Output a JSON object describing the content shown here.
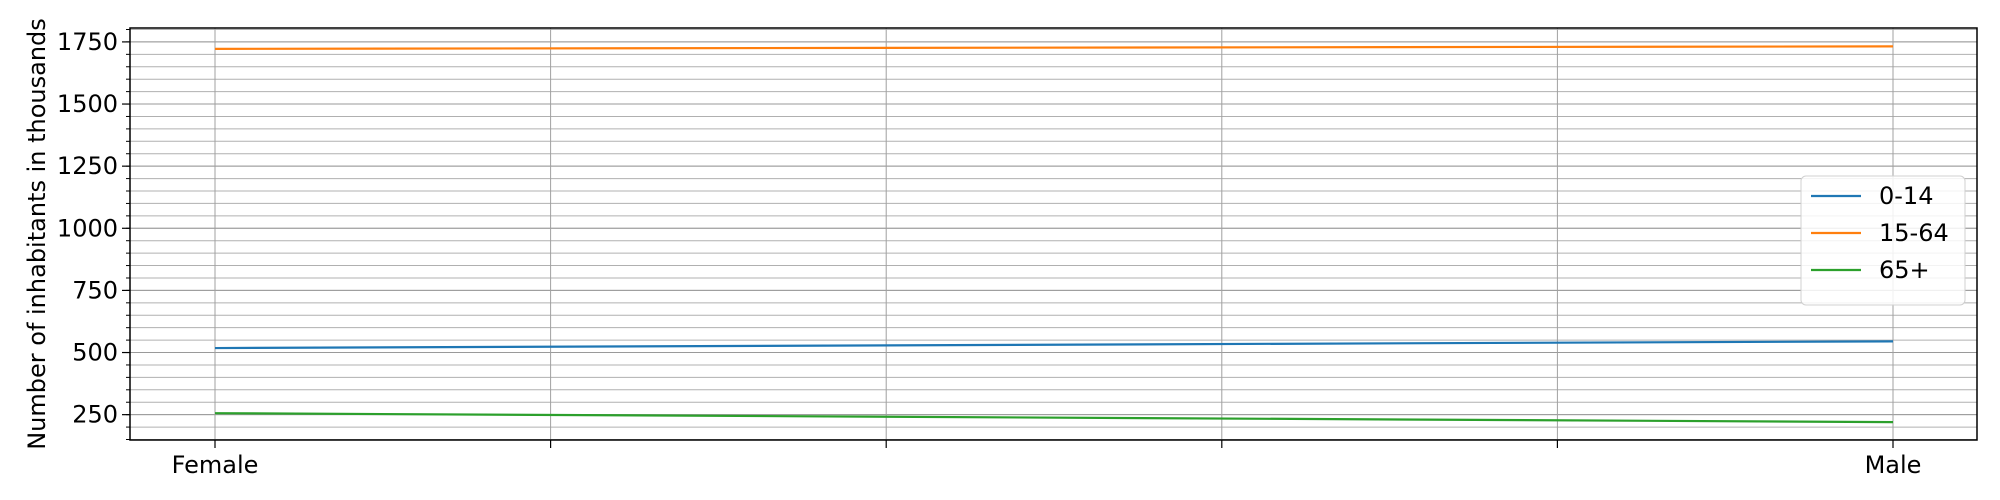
{
  "chart_data": {
    "type": "line",
    "categories": [
      "Female",
      "Male"
    ],
    "series": [
      {
        "name": "0-14",
        "values": [
          518,
          545
        ],
        "color": "#1f77b4"
      },
      {
        "name": "15-64",
        "values": [
          1722,
          1732
        ],
        "color": "#ff7f0e"
      },
      {
        "name": "65+",
        "values": [
          256,
          220
        ],
        "color": "#2ca02c"
      }
    ],
    "title": "",
    "xlabel": "",
    "ylabel": "Number of inhabitants in thousands",
    "ylim": [
      148,
      1806
    ],
    "yticks": [
      250,
      500,
      750,
      1000,
      1250,
      1500,
      1750
    ],
    "grid": true,
    "legend_position": "center-right"
  }
}
